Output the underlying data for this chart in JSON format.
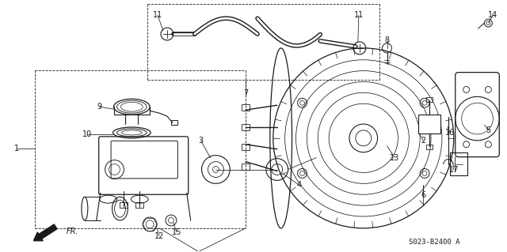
{
  "bg_color": "#ffffff",
  "line_color": "#1a1a1a",
  "figure_width": 6.4,
  "figure_height": 3.19,
  "dpi": 100,
  "diagram_code": "S023-B2400 A"
}
